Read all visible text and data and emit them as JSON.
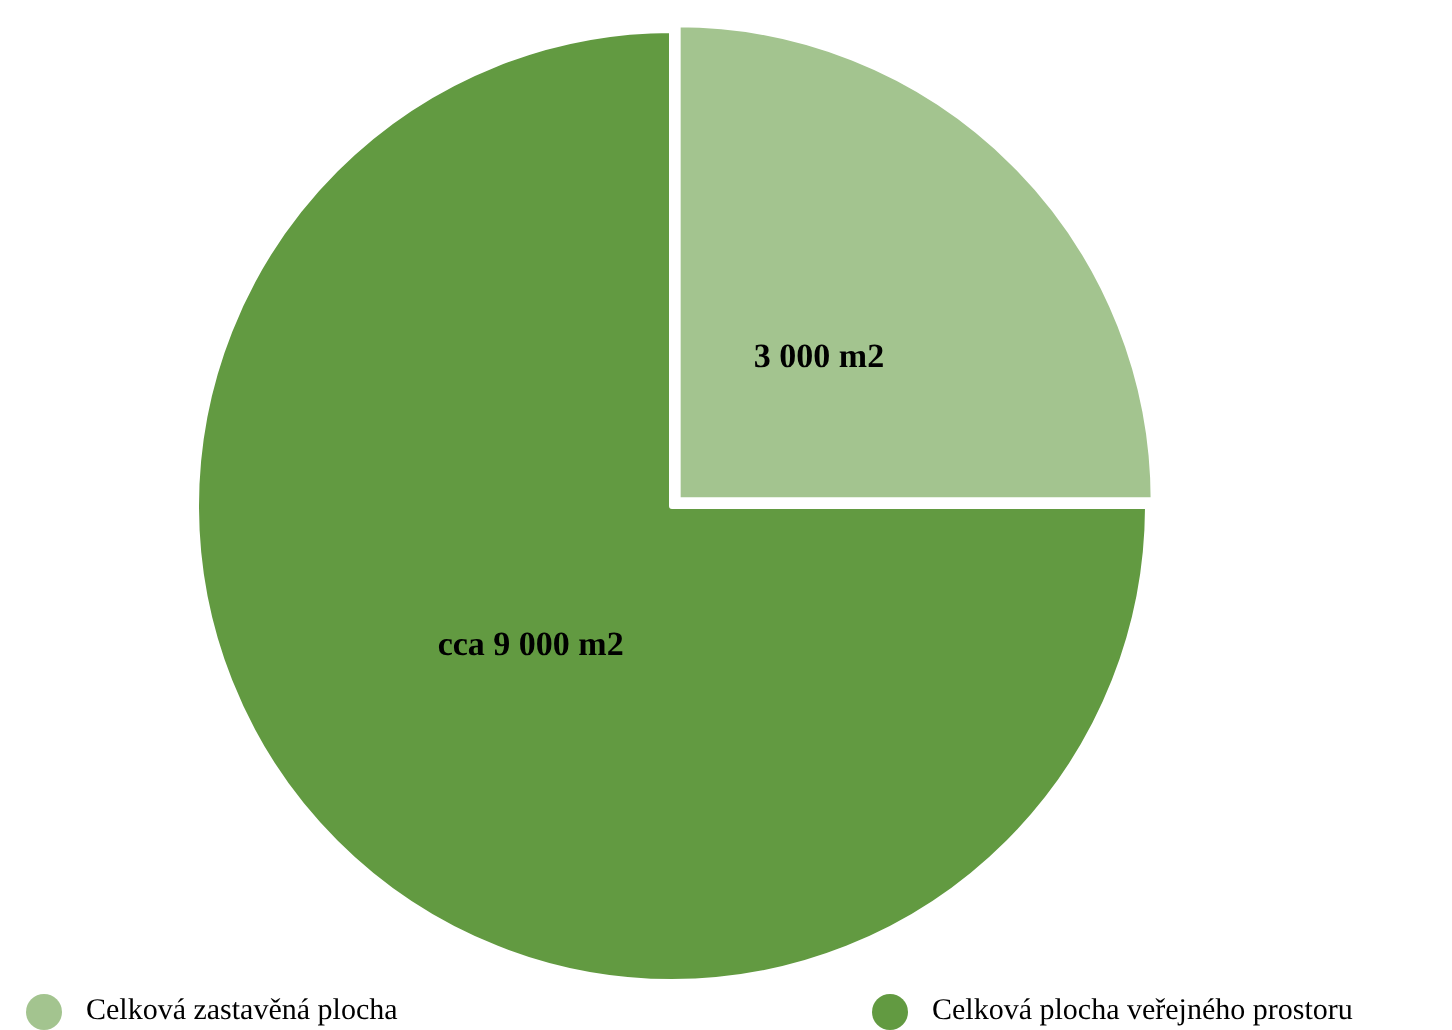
{
  "chart_data": {
    "type": "pie",
    "categories": [
      "Celková zastavěná plocha",
      "Celková plocha veřejného prostoru"
    ],
    "values": [
      3000,
      9000
    ],
    "value_labels": [
      "3 000 m2",
      "cca 9 000 m2"
    ],
    "colors": [
      "#a3c48f",
      "#629a41"
    ],
    "legend": "bottom"
  }
}
